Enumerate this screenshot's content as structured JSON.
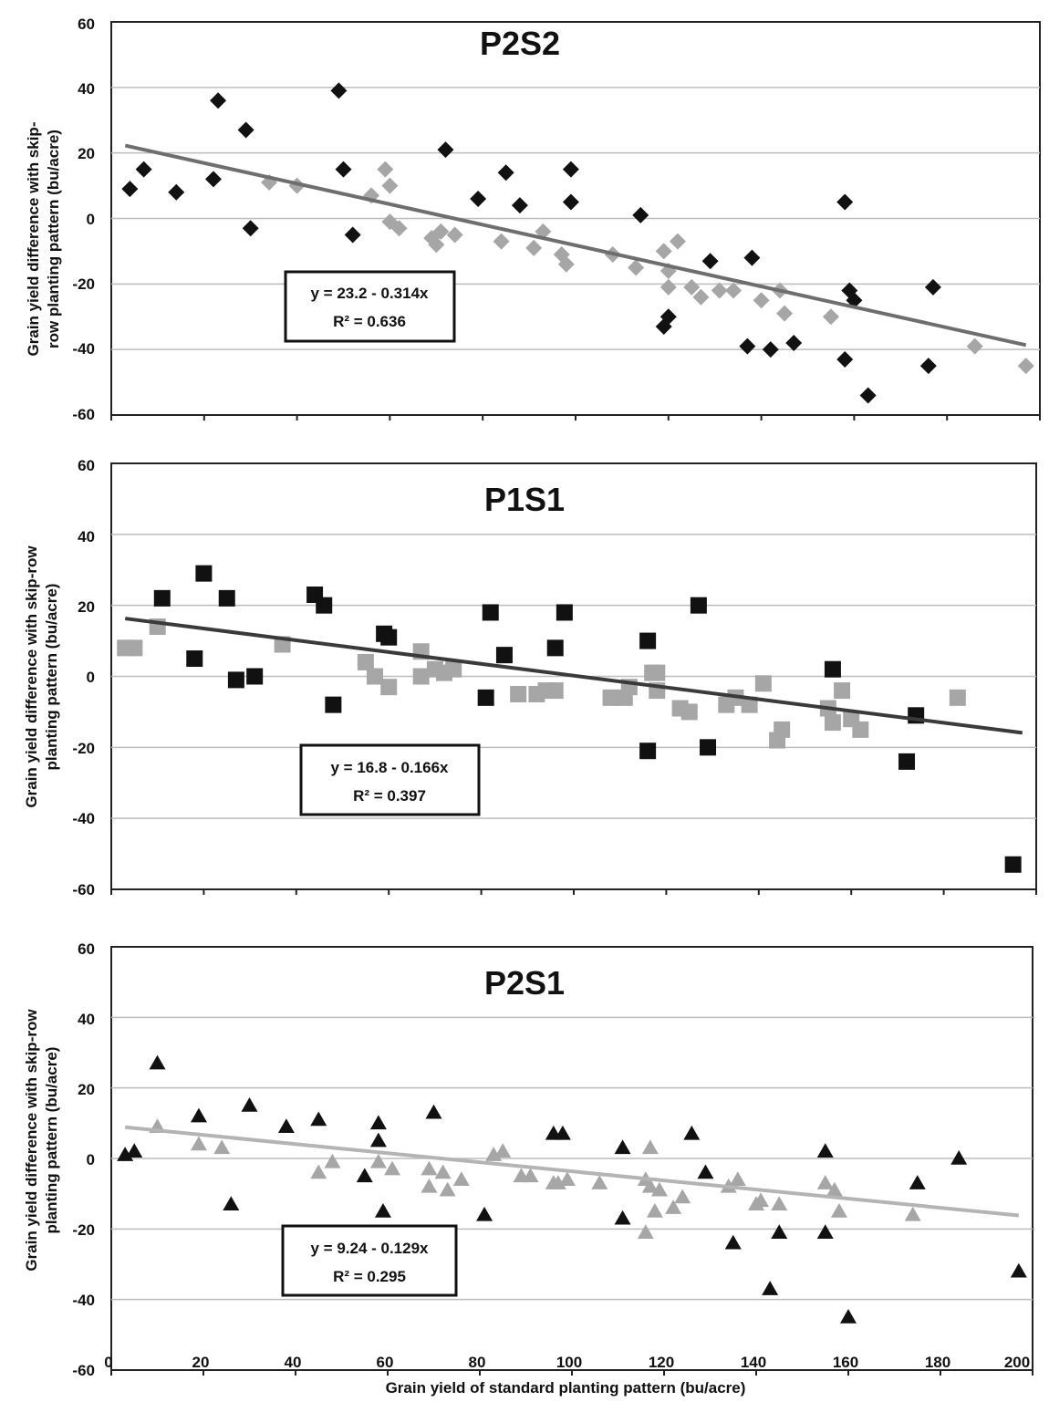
{
  "colors": {
    "dark_marker": "#111111",
    "light_marker": "#a6a6a6",
    "trend_p2s2": "#6e6e6e",
    "trend_p1s1": "#3a3a3a",
    "trend_p2s1": "#b4b4b4",
    "grid": "#bdbdbd",
    "frame": "#222222"
  },
  "xaxis": {
    "label": "Grain yield of standard planting pattern (bu/acre)",
    "ticks": [
      "0",
      "20",
      "40",
      "60",
      "80",
      "100",
      "120",
      "140",
      "160",
      "180",
      "200"
    ],
    "range": [
      0,
      200
    ]
  },
  "chart_data": [
    {
      "type": "scatter",
      "title": "P2S2",
      "marker": "diamond",
      "ylabel_lines": [
        "Grain yield difference with skip-",
        "row planting pattern (bu/acre)"
      ],
      "ylim": [
        -60,
        60
      ],
      "yticks": [
        "60",
        "40",
        "20",
        "0",
        "-20",
        "-40",
        "-60"
      ],
      "grid": true,
      "legend": "none",
      "equation": "y = 23.2 - 0.314x",
      "r2": "R² = 0.636",
      "trend": {
        "intercept": 23.2,
        "slope": -0.314,
        "x_range": [
          3,
          197
        ]
      },
      "series": [
        {
          "tone": "dark",
          "points": [
            [
              4,
              9
            ],
            [
              7,
              15
            ],
            [
              14,
              8
            ],
            [
              22,
              12
            ],
            [
              23,
              36
            ],
            [
              29,
              27
            ],
            [
              30,
              -3
            ],
            [
              49,
              39
            ],
            [
              50,
              15
            ],
            [
              52,
              -5
            ],
            [
              72,
              21
            ],
            [
              79,
              6
            ],
            [
              85,
              14
            ],
            [
              88,
              4
            ],
            [
              99,
              15
            ],
            [
              99,
              5
            ],
            [
              114,
              1
            ],
            [
              119,
              -33
            ],
            [
              120,
              -30
            ],
            [
              129,
              -13
            ],
            [
              138,
              -12
            ],
            [
              137,
              -39
            ],
            [
              142,
              -40
            ],
            [
              147,
              -38
            ],
            [
              158,
              5
            ],
            [
              159,
              -22
            ],
            [
              160,
              -25
            ],
            [
              158,
              -43
            ],
            [
              163,
              -54
            ],
            [
              176,
              -45
            ],
            [
              177,
              -21
            ]
          ]
        },
        {
          "tone": "light",
          "points": [
            [
              34,
              11
            ],
            [
              40,
              10
            ],
            [
              56,
              7
            ],
            [
              59,
              15
            ],
            [
              60,
              -1
            ],
            [
              60,
              10
            ],
            [
              62,
              -3
            ],
            [
              69,
              -6
            ],
            [
              70,
              -8
            ],
            [
              71,
              -4
            ],
            [
              74,
              -5
            ],
            [
              84,
              -7
            ],
            [
              91,
              -9
            ],
            [
              93,
              -4
            ],
            [
              97,
              -11
            ],
            [
              98,
              -14
            ],
            [
              108,
              -11
            ],
            [
              113,
              -15
            ],
            [
              119,
              -10
            ],
            [
              120,
              -16
            ],
            [
              120,
              -21
            ],
            [
              122,
              -7
            ],
            [
              125,
              -21
            ],
            [
              127,
              -24
            ],
            [
              131,
              -22
            ],
            [
              134,
              -22
            ],
            [
              140,
              -25
            ],
            [
              144,
              -22
            ],
            [
              145,
              -29
            ],
            [
              155,
              -30
            ],
            [
              186,
              -39
            ],
            [
              197,
              -45
            ]
          ]
        }
      ]
    },
    {
      "type": "scatter",
      "title": "P1S1",
      "marker": "square",
      "ylabel_lines": [
        "Grain yield difference with skip-row",
        "planting pattern (bu/acre)"
      ],
      "ylim": [
        -60,
        60
      ],
      "yticks": [
        "60",
        "40",
        "20",
        "0",
        "-20",
        "-40",
        "-60"
      ],
      "grid": true,
      "legend": "none",
      "equation": "y = 16.8 - 0.166x",
      "r2": "R² = 0.397",
      "trend": {
        "intercept": 16.8,
        "slope": -0.166,
        "x_range": [
          3,
          197
        ]
      },
      "series": [
        {
          "tone": "dark",
          "points": [
            [
              11,
              22
            ],
            [
              18,
              5
            ],
            [
              20,
              29
            ],
            [
              25,
              22
            ],
            [
              27,
              -1
            ],
            [
              31,
              0
            ],
            [
              44,
              23
            ],
            [
              46,
              20
            ],
            [
              48,
              -8
            ],
            [
              59,
              12
            ],
            [
              60,
              11
            ],
            [
              81,
              -6
            ],
            [
              82,
              18
            ],
            [
              85,
              6
            ],
            [
              96,
              8
            ],
            [
              98,
              18
            ],
            [
              116,
              10
            ],
            [
              116,
              -21
            ],
            [
              127,
              20
            ],
            [
              129,
              -20
            ],
            [
              156,
              2
            ],
            [
              172,
              -24
            ],
            [
              174,
              -11
            ],
            [
              195,
              -53
            ]
          ]
        },
        {
          "tone": "light",
          "points": [
            [
              3,
              8
            ],
            [
              5,
              8
            ],
            [
              10,
              14
            ],
            [
              37,
              9
            ],
            [
              55,
              4
            ],
            [
              57,
              0
            ],
            [
              60,
              -3
            ],
            [
              67,
              7
            ],
            [
              67,
              0
            ],
            [
              70,
              2
            ],
            [
              72,
              1
            ],
            [
              74,
              2
            ],
            [
              88,
              -5
            ],
            [
              92,
              -5
            ],
            [
              94,
              -4
            ],
            [
              96,
              -4
            ],
            [
              108,
              -6
            ],
            [
              111,
              -6
            ],
            [
              112,
              -3
            ],
            [
              117,
              1
            ],
            [
              118,
              1
            ],
            [
              118,
              -4
            ],
            [
              123,
              -9
            ],
            [
              125,
              -10
            ],
            [
              133,
              -8
            ],
            [
              135,
              -6
            ],
            [
              138,
              -8
            ],
            [
              141,
              -2
            ],
            [
              144,
              -18
            ],
            [
              145,
              -15
            ],
            [
              155,
              -9
            ],
            [
              156,
              -13
            ],
            [
              158,
              -4
            ],
            [
              160,
              -12
            ],
            [
              162,
              -15
            ],
            [
              183,
              -6
            ]
          ]
        }
      ]
    },
    {
      "type": "scatter",
      "title": "P2S1",
      "marker": "triangle",
      "ylabel_lines": [
        "Grain yield difference with skip-row",
        "planting pattern (bu/acre)"
      ],
      "ylim": [
        -60,
        60
      ],
      "yticks": [
        "60",
        "40",
        "20",
        "0",
        "-20",
        "-40",
        "-60"
      ],
      "grid": true,
      "legend": "none",
      "equation": "y = 9.24 - 0.129x",
      "r2": "R² = 0.295",
      "trend": {
        "intercept": 9.24,
        "slope": -0.129,
        "x_range": [
          3,
          197
        ]
      },
      "series": [
        {
          "tone": "dark",
          "points": [
            [
              3,
              1
            ],
            [
              5,
              2
            ],
            [
              10,
              27
            ],
            [
              19,
              12
            ],
            [
              26,
              -13
            ],
            [
              30,
              15
            ],
            [
              38,
              9
            ],
            [
              45,
              11
            ],
            [
              55,
              -5
            ],
            [
              58,
              10
            ],
            [
              58,
              5
            ],
            [
              59,
              -15
            ],
            [
              70,
              13
            ],
            [
              81,
              -16
            ],
            [
              96,
              7
            ],
            [
              98,
              7
            ],
            [
              111,
              3
            ],
            [
              111,
              -17
            ],
            [
              126,
              7
            ],
            [
              129,
              -4
            ],
            [
              135,
              -24
            ],
            [
              143,
              -37
            ],
            [
              145,
              -21
            ],
            [
              155,
              2
            ],
            [
              155,
              -21
            ],
            [
              160,
              -45
            ],
            [
              175,
              -7
            ],
            [
              184,
              0
            ],
            [
              197,
              -32
            ]
          ]
        },
        {
          "tone": "light",
          "points": [
            [
              10,
              9
            ],
            [
              19,
              4
            ],
            [
              24,
              3
            ],
            [
              45,
              -4
            ],
            [
              48,
              -1
            ],
            [
              58,
              -1
            ],
            [
              61,
              -3
            ],
            [
              69,
              -3
            ],
            [
              69,
              -8
            ],
            [
              72,
              -4
            ],
            [
              73,
              -9
            ],
            [
              76,
              -6
            ],
            [
              83,
              1
            ],
            [
              85,
              2
            ],
            [
              89,
              -5
            ],
            [
              91,
              -5
            ],
            [
              96,
              -7
            ],
            [
              97,
              -7
            ],
            [
              99,
              -6
            ],
            [
              106,
              -7
            ],
            [
              116,
              -6
            ],
            [
              116,
              -21
            ],
            [
              117,
              3
            ],
            [
              117,
              -8
            ],
            [
              118,
              -15
            ],
            [
              119,
              -9
            ],
            [
              122,
              -14
            ],
            [
              124,
              -11
            ],
            [
              134,
              -8
            ],
            [
              136,
              -6
            ],
            [
              140,
              -13
            ],
            [
              141,
              -12
            ],
            [
              145,
              -13
            ],
            [
              155,
              -7
            ],
            [
              157,
              -9
            ],
            [
              158,
              -15
            ],
            [
              174,
              -16
            ]
          ]
        }
      ]
    }
  ]
}
